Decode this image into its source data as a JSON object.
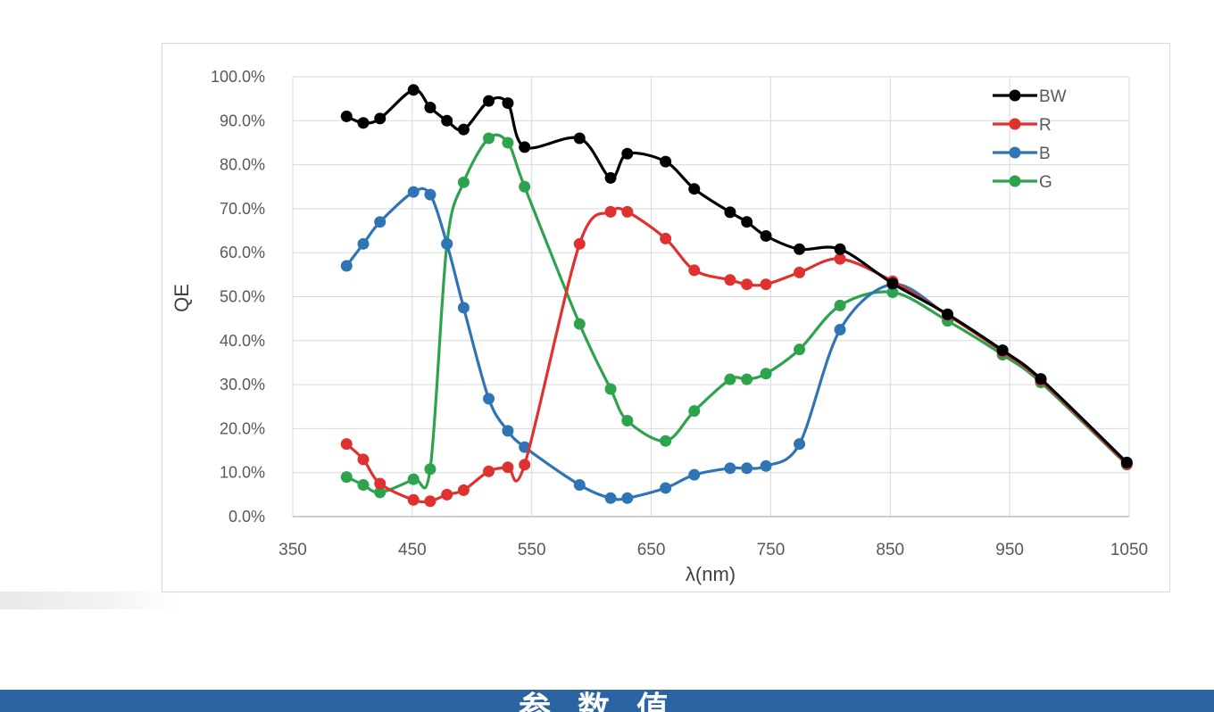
{
  "chart_data": {
    "type": "line",
    "title": "",
    "xlabel": "λ(nm)",
    "ylabel": "QE",
    "xlim": [
      350,
      1050
    ],
    "ylim": [
      0,
      100
    ],
    "xticks": [
      "350",
      "450",
      "550",
      "650",
      "750",
      "850",
      "950",
      "1050"
    ],
    "yticks": [
      "0.0%",
      "10.0%",
      "20.0%",
      "30.0%",
      "40.0%",
      "50.0%",
      "60.0%",
      "70.0%",
      "80.0%",
      "90.0%",
      "100.0%"
    ],
    "grid": true,
    "legend_position": "top-right",
    "series": [
      {
        "name": "BW",
        "color": "#000000",
        "points": [
          [
            395,
            91
          ],
          [
            409,
            89.5
          ],
          [
            423,
            90.5
          ],
          [
            451,
            97
          ],
          [
            465,
            93
          ],
          [
            479,
            90
          ],
          [
            493,
            88
          ],
          [
            514,
            94.5
          ],
          [
            530,
            94
          ],
          [
            544,
            84
          ],
          [
            590,
            86
          ],
          [
            616,
            77
          ],
          [
            630,
            82.5
          ],
          [
            662,
            80.7
          ],
          [
            686,
            74.5
          ],
          [
            716,
            69.2
          ],
          [
            730,
            67
          ],
          [
            746,
            63.8
          ],
          [
            774,
            60.8
          ],
          [
            808,
            60.8
          ],
          [
            852,
            53
          ],
          [
            898,
            46
          ],
          [
            944,
            37.8
          ],
          [
            976,
            31.3
          ],
          [
            1048,
            12.3
          ]
        ]
      },
      {
        "name": "R",
        "color": "#e03131",
        "points": [
          [
            395,
            16.5
          ],
          [
            409,
            13
          ],
          [
            423,
            7.5
          ],
          [
            451,
            3.8
          ],
          [
            465,
            3.5
          ],
          [
            479,
            5
          ],
          [
            493,
            6
          ],
          [
            514,
            10.3
          ],
          [
            530,
            11.2
          ],
          [
            544,
            11.8
          ],
          [
            590,
            62
          ],
          [
            616,
            69.3
          ],
          [
            630,
            69.3
          ],
          [
            662,
            63.2
          ],
          [
            686,
            56
          ],
          [
            716,
            53.8
          ],
          [
            730,
            52.8
          ],
          [
            746,
            52.8
          ],
          [
            774,
            55.5
          ],
          [
            808,
            58.6
          ],
          [
            852,
            53.5
          ],
          [
            898,
            45.8
          ],
          [
            944,
            37.5
          ],
          [
            976,
            31
          ],
          [
            1048,
            12
          ]
        ]
      },
      {
        "name": "B",
        "color": "#2f75b5",
        "points": [
          [
            395,
            57
          ],
          [
            409,
            62
          ],
          [
            423,
            67
          ],
          [
            451,
            73.8
          ],
          [
            465,
            73.2
          ],
          [
            479,
            62
          ],
          [
            493,
            47.5
          ],
          [
            514,
            26.8
          ],
          [
            530,
            19.5
          ],
          [
            544,
            15.8
          ],
          [
            590,
            7.2
          ],
          [
            616,
            4.2
          ],
          [
            630,
            4.2
          ],
          [
            662,
            6.5
          ],
          [
            686,
            9.5
          ],
          [
            716,
            11
          ],
          [
            730,
            11
          ],
          [
            746,
            11.5
          ],
          [
            774,
            16.5
          ],
          [
            808,
            42.5
          ],
          [
            852,
            52.8
          ],
          [
            898,
            45.8
          ],
          [
            944,
            37.8
          ],
          [
            976,
            31.3
          ],
          [
            1048,
            12.3
          ]
        ]
      },
      {
        "name": "G",
        "color": "#2ea34d",
        "points": [
          [
            395,
            9
          ],
          [
            409,
            7.2
          ],
          [
            423,
            5.5
          ],
          [
            451,
            8.5
          ],
          [
            465,
            10.8
          ],
          [
            479,
            62
          ],
          [
            493,
            76
          ],
          [
            514,
            86
          ],
          [
            530,
            85
          ],
          [
            544,
            75
          ],
          [
            590,
            43.8
          ],
          [
            616,
            29
          ],
          [
            630,
            21.8
          ],
          [
            662,
            17.2
          ],
          [
            686,
            24
          ],
          [
            716,
            31.2
          ],
          [
            730,
            31.2
          ],
          [
            746,
            32.5
          ],
          [
            774,
            38
          ],
          [
            808,
            48
          ],
          [
            852,
            51
          ],
          [
            898,
            44.5
          ],
          [
            944,
            36.8
          ],
          [
            976,
            30.5
          ],
          [
            1048,
            11.8
          ]
        ]
      }
    ]
  },
  "banner": {
    "title": "参数值",
    "color": "#2a64a3"
  }
}
